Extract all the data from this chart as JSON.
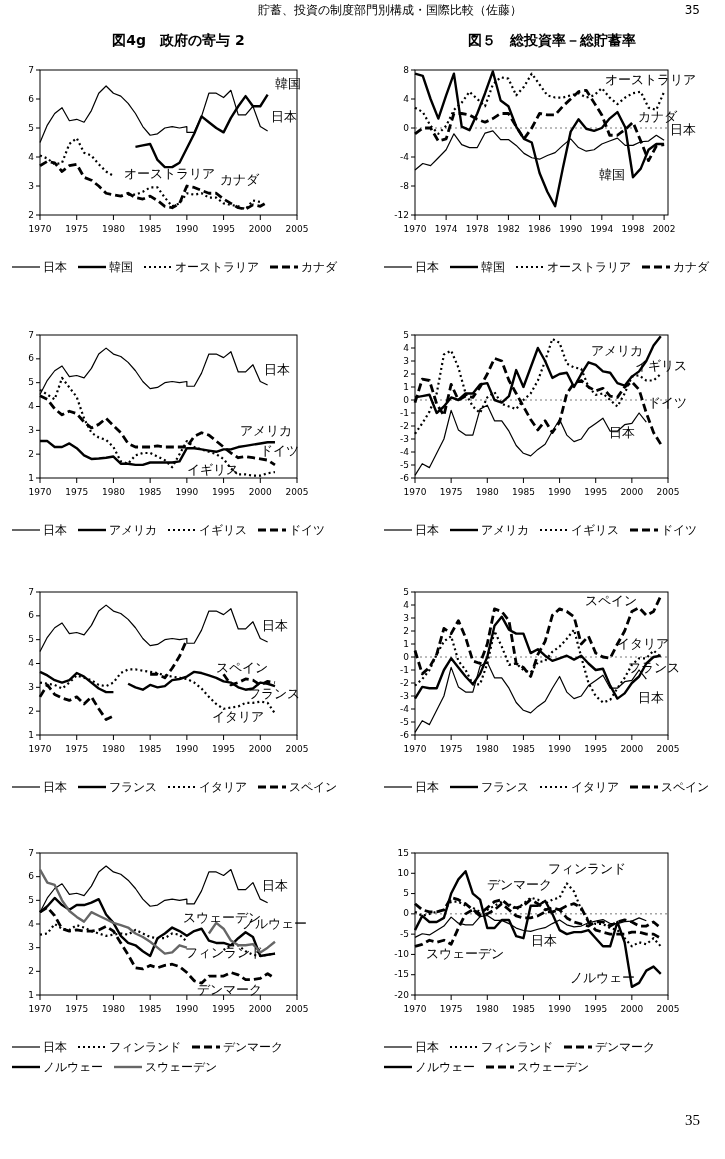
{
  "chart_data": [
    {
      "type": "line",
      "title": "図4g　政府の寄与 2",
      "annotations": [
        "貯蓄、投資の制度部門別構成・国際比較（佐藤）",
        "韓国",
        "日本",
        "オーストラリア",
        "カナダ"
      ],
      "x": [
        1970,
        1971,
        1972,
        1973,
        1974,
        1975,
        1976,
        1977,
        1978,
        1979,
        1980,
        1981,
        1982,
        1983,
        1984,
        1985,
        1986,
        1987,
        1988,
        1989,
        1990,
        1991,
        1992,
        1993,
        1994,
        1995,
        1996,
        1997,
        1998,
        1999,
        2000,
        2001
      ],
      "xlim": [
        1970,
        2005
      ],
      "xticks": [
        1970,
        1975,
        1980,
        1985,
        1990,
        1995,
        2000,
        2005
      ],
      "ylim": [
        2,
        7
      ],
      "yticks": [
        2,
        3,
        4,
        5,
        6,
        7
      ],
      "legend": "bottom",
      "series": [
        {
          "name": "日本",
          "color": "#000000",
          "line_style": "solid",
          "x": [
            1970,
            1971,
            1972,
            1973,
            1974,
            1975,
            1976,
            1977,
            1978,
            1979,
            1980,
            1981,
            1982,
            1983,
            1984,
            1985,
            1986,
            1987,
            1988,
            1989,
            1990,
            1990,
            1991,
            1992,
            1993,
            1994,
            1995,
            1996,
            1997,
            1998,
            1999,
            2000,
            2001
          ],
          "values": [
            4.5,
            5.1,
            5.5,
            5.7,
            5.25,
            5.3,
            5.2,
            5.6,
            6.2,
            6.45,
            6.2,
            6.1,
            5.85,
            5.5,
            5.05,
            4.75,
            4.8,
            5.0,
            5.05,
            5.0,
            5.05,
            4.85,
            4.85,
            5.4,
            6.2,
            6.2,
            6.05,
            6.3,
            5.45,
            5.45,
            5.75,
            5.05,
            4.9
          ]
        },
        {
          "name": "韓国",
          "color": "#000000",
          "line_style": "solid",
          "values": [
            null,
            null,
            null,
            null,
            null,
            null,
            null,
            null,
            null,
            null,
            null,
            null,
            null,
            4.35,
            4.4,
            4.45,
            3.9,
            3.65,
            3.65,
            3.8,
            4.3,
            4.8,
            5.4,
            5.2,
            5.0,
            4.85,
            5.35,
            5.75,
            6.1,
            5.75,
            5.75,
            6.15
          ]
        },
        {
          "name": "オーストラリア",
          "color": "#000000",
          "line_style": "dotted",
          "values": [
            4.05,
            3.95,
            3.75,
            3.8,
            4.45,
            4.65,
            4.15,
            4.05,
            3.75,
            3.5,
            3.35,
            null,
            2.7,
            2.7,
            2.8,
            2.95,
            2.95,
            2.6,
            2.3,
            2.4,
            2.75,
            2.7,
            2.75,
            2.6,
            2.6,
            2.4,
            2.35,
            2.3,
            2.2,
            2.5,
            2.45,
            null
          ]
        },
        {
          "name": "カナダ",
          "color": "#000000",
          "line_style": "dashed",
          "values": [
            3.7,
            3.85,
            3.8,
            3.5,
            3.7,
            3.75,
            3.3,
            3.2,
            3.0,
            2.75,
            2.7,
            2.65,
            2.75,
            2.6,
            2.55,
            2.65,
            2.5,
            2.3,
            2.25,
            2.4,
            3.0,
            2.95,
            2.85,
            2.75,
            2.75,
            2.55,
            2.4,
            2.25,
            2.2,
            2.35,
            2.3,
            2.45
          ]
        }
      ]
    },
    {
      "type": "line",
      "title": "図５　総投資率－総貯蓄率",
      "annotations": [
        "35",
        "オーストラリア",
        "カナダ",
        "日本",
        "韓国"
      ],
      "x": [
        1970,
        1971,
        1972,
        1973,
        1974,
        1975,
        1976,
        1977,
        1978,
        1979,
        1980,
        1981,
        1982,
        1983,
        1984,
        1985,
        1986,
        1987,
        1988,
        1989,
        1990,
        1991,
        1992,
        1993,
        1994,
        1995,
        1996,
        1997,
        1998,
        1999,
        2000,
        2001,
        2002
      ],
      "xlim": [
        1970,
        2002.5
      ],
      "xticks": [
        1970,
        1974,
        1978,
        1982,
        1986,
        1990,
        1994,
        1998,
        2002
      ],
      "ylim": [
        -12,
        8
      ],
      "yticks": [
        -12,
        -8,
        -4,
        0,
        4,
        8
      ],
      "legend": "bottom",
      "ref_lines": [
        {
          "axis": "y",
          "value": 0,
          "line_style": "dotted"
        }
      ],
      "series": [
        {
          "name": "日本",
          "color": "#000000",
          "line_style": "solid",
          "values": [
            -5.8,
            -4.9,
            -5.2,
            -4.1,
            -3.0,
            -0.8,
            -2.3,
            -2.7,
            -2.7,
            -0.7,
            -0.4,
            -1.6,
            -1.6,
            -2.4,
            -3.5,
            -4.1,
            -4.3,
            -3.8,
            -3.4,
            -2.4,
            -1.5,
            -2.7,
            -3.2,
            -3.0,
            -2.2,
            -1.8,
            -1.4,
            -2.4,
            -2.4,
            -1.9,
            -1.8,
            -1.0,
            -1.7
          ]
        },
        {
          "name": "韓国",
          "color": "#000000",
          "line_style": "solid",
          "values": [
            7.5,
            7.2,
            4.0,
            1.3,
            4.5,
            7.5,
            0.2,
            -0.3,
            2.0,
            4.8,
            7.8,
            3.8,
            3.0,
            0.2,
            -1.5,
            -2.0,
            -6.2,
            -8.8,
            -10.8,
            -5.5,
            -0.5,
            1.2,
            -0.1,
            -0.4,
            0.0,
            1.3,
            2.2,
            0.1,
            -6.8,
            -5.6,
            -3.0,
            -2.2,
            -2.2
          ]
        },
        {
          "name": "オーストラリア",
          "color": "#000000",
          "line_style": "dotted",
          "values": [
            2.8,
            2.2,
            0.3,
            -0.8,
            0.3,
            2.5,
            3.5,
            5.0,
            4.0,
            3.0,
            6.0,
            7.0,
            6.8,
            4.5,
            5.7,
            7.5,
            6.0,
            4.5,
            4.2,
            4.2,
            4.5,
            4.8,
            4.2,
            4.5,
            5.5,
            4.2,
            3.3,
            4.2,
            4.8,
            5.0,
            2.8,
            2.5,
            5.0
          ]
        },
        {
          "name": "カナダ",
          "color": "#000000",
          "line_style": "dashed",
          "values": [
            -0.8,
            0.0,
            0.0,
            -1.8,
            -1.5,
            2.0,
            2.0,
            1.8,
            1.2,
            0.8,
            1.3,
            2.0,
            2.0,
            0.2,
            -1.5,
            0.0,
            2.0,
            1.8,
            1.8,
            3.0,
            4.0,
            5.0,
            5.2,
            3.5,
            1.8,
            -1.0,
            -1.0,
            -0.2,
            0.8,
            -1.8,
            -4.5,
            -2.5,
            -2.3
          ]
        }
      ]
    },
    {
      "type": "line",
      "annotations": [
        "日本",
        "アメリカ",
        "ドイツ",
        "イギリス"
      ],
      "x": [
        1970,
        1971,
        1972,
        1973,
        1974,
        1975,
        1976,
        1977,
        1978,
        1979,
        1980,
        1981,
        1982,
        1983,
        1984,
        1985,
        1986,
        1987,
        1988,
        1989,
        1990,
        1991,
        1992,
        1993,
        1994,
        1995,
        1996,
        1997,
        1998,
        1999,
        2000,
        2001,
        2002
      ],
      "xlim": [
        1970,
        2005
      ],
      "xticks": [
        1970,
        1975,
        1980,
        1985,
        1990,
        1995,
        2000,
        2005
      ],
      "ylim": [
        1,
        7
      ],
      "yticks": [
        1,
        2,
        3,
        4,
        5,
        6,
        7
      ],
      "legend": "bottom",
      "series": [
        {
          "name": "日本",
          "color": "#000000",
          "line_style": "solid",
          "x": [
            1970,
            1971,
            1972,
            1973,
            1974,
            1975,
            1976,
            1977,
            1978,
            1979,
            1980,
            1981,
            1982,
            1983,
            1984,
            1985,
            1986,
            1987,
            1988,
            1989,
            1990,
            1990,
            1991,
            1992,
            1993,
            1994,
            1995,
            1996,
            1997,
            1998,
            1999,
            2000,
            2001
          ],
          "values": [
            4.5,
            5.1,
            5.5,
            5.7,
            5.25,
            5.3,
            5.2,
            5.6,
            6.2,
            6.45,
            6.2,
            6.1,
            5.85,
            5.5,
            5.05,
            4.75,
            4.8,
            5.0,
            5.05,
            5.0,
            5.05,
            4.85,
            4.85,
            5.4,
            6.2,
            6.2,
            6.05,
            6.3,
            5.45,
            5.45,
            5.75,
            5.05,
            4.9
          ]
        },
        {
          "name": "アメリカ",
          "color": "#000000",
          "line_style": "solid",
          "values": [
            2.55,
            2.55,
            2.3,
            2.3,
            2.45,
            2.25,
            1.95,
            1.8,
            1.82,
            1.85,
            1.9,
            1.6,
            1.6,
            1.55,
            1.55,
            1.65,
            1.65,
            1.65,
            1.65,
            1.7,
            2.25,
            2.25,
            2.2,
            2.15,
            2.1,
            2.2,
            2.2,
            2.3,
            2.35,
            2.4,
            2.45,
            2.5,
            2.5
          ]
        },
        {
          "name": "イギリス",
          "color": "#000000",
          "line_style": "dotted",
          "values": [
            4.7,
            4.5,
            4.3,
            5.2,
            4.8,
            4.4,
            3.5,
            2.9,
            2.7,
            2.6,
            2.3,
            1.7,
            1.6,
            1.95,
            2.05,
            2.05,
            1.9,
            1.75,
            1.45,
            2.0,
            2.55,
            2.3,
            2.2,
            2.1,
            2.0,
            1.8,
            1.4,
            1.15,
            1.15,
            1.1,
            1.1,
            1.2,
            1.25
          ]
        },
        {
          "name": "ドイツ",
          "color": "#000000",
          "line_style": "dashed",
          "values": [
            4.45,
            4.3,
            3.9,
            3.65,
            3.8,
            3.7,
            3.35,
            3.1,
            3.25,
            3.5,
            3.2,
            2.9,
            2.45,
            2.3,
            2.3,
            2.3,
            2.35,
            2.3,
            2.3,
            2.3,
            2.3,
            2.75,
            2.9,
            2.8,
            2.55,
            2.3,
            2.05,
            1.85,
            1.9,
            1.85,
            1.8,
            1.75,
            1.55
          ]
        }
      ]
    },
    {
      "type": "line",
      "annotations": [
        "アメリカ",
        "イギリス",
        "ドイツ",
        "日本"
      ],
      "x": [
        1970,
        1971,
        1972,
        1973,
        1974,
        1975,
        1976,
        1977,
        1978,
        1979,
        1980,
        1981,
        1982,
        1983,
        1984,
        1985,
        1986,
        1987,
        1988,
        1989,
        1990,
        1991,
        1992,
        1993,
        1994,
        1995,
        1996,
        1997,
        1998,
        1999,
        2000,
        2001,
        2002,
        2003,
        2004
      ],
      "xlim": [
        1970,
        2005
      ],
      "xticks": [
        1970,
        1975,
        1980,
        1985,
        1990,
        1995,
        2000,
        2005
      ],
      "ylim": [
        -6,
        5
      ],
      "yticks": [
        -6,
        -5,
        -4,
        -3,
        -2,
        -1,
        0,
        1,
        2,
        3,
        4,
        5
      ],
      "legend": "bottom",
      "ref_lines": [
        {
          "axis": "y",
          "value": 0,
          "line_style": "dotted"
        }
      ],
      "series": [
        {
          "name": "日本",
          "color": "#000000",
          "line_style": "solid",
          "x": [
            1970,
            1971,
            1972,
            1973,
            1974,
            1975,
            1976,
            1977,
            1978,
            1979,
            1980,
            1981,
            1982,
            1983,
            1984,
            1985,
            1986,
            1987,
            1988,
            1989,
            1990,
            1991,
            1992,
            1993,
            1994,
            1995,
            1996,
            1997,
            1998,
            1999,
            2000,
            2001,
            2002
          ],
          "values": [
            -5.8,
            -4.9,
            -5.2,
            -4.1,
            -3.0,
            -0.8,
            -2.3,
            -2.7,
            -2.7,
            -0.7,
            -0.4,
            -1.6,
            -1.6,
            -2.4,
            -3.5,
            -4.1,
            -4.3,
            -3.8,
            -3.4,
            -2.4,
            -1.5,
            -2.7,
            -3.2,
            -3.0,
            -2.2,
            -1.8,
            -1.4,
            -2.4,
            -2.4,
            -1.9,
            -1.8,
            -1.0,
            -1.7
          ]
        },
        {
          "name": "アメリカ",
          "color": "#000000",
          "line_style": "solid",
          "values": [
            0.2,
            0.3,
            0.4,
            -1.0,
            -0.5,
            0.2,
            0.0,
            0.5,
            0.5,
            1.2,
            1.3,
            0.0,
            -0.2,
            0.3,
            2.3,
            1.0,
            2.5,
            4.0,
            3.0,
            1.7,
            2.0,
            2.1,
            1.0,
            2.0,
            2.9,
            2.7,
            2.2,
            2.1,
            1.3,
            1.1,
            1.8,
            2.2,
            3.0,
            4.2,
            4.9
          ]
        },
        {
          "name": "イギリス",
          "color": "#000000",
          "line_style": "dotted",
          "values": [
            -2.6,
            -1.8,
            -0.9,
            0.5,
            3.5,
            3.8,
            2.5,
            0.5,
            -0.5,
            -1.0,
            0.2,
            0.6,
            -0.3,
            -0.5,
            -0.7,
            0.0,
            0.5,
            1.5,
            3.0,
            4.7,
            4.4,
            2.8,
            2.5,
            2.4,
            1.0,
            0.4,
            0.5,
            0.0,
            -0.5,
            0.5,
            1.8,
            1.9,
            1.5,
            1.5,
            2.0
          ]
        },
        {
          "name": "ドイツ",
          "color": "#000000",
          "line_style": "dashed",
          "values": [
            -0.2,
            1.6,
            1.5,
            -0.3,
            -1.2,
            1.2,
            0.0,
            0.3,
            0.2,
            1.0,
            2.0,
            3.2,
            3.0,
            1.5,
            0.5,
            -0.5,
            -1.5,
            -2.3,
            -1.6,
            -2.5,
            -1.7,
            0.5,
            1.3,
            1.5,
            1.0,
            0.7,
            0.9,
            0.3,
            0.2,
            1.0,
            1.4,
            0.8,
            -1.0,
            -2.5,
            -3.4
          ]
        }
      ]
    },
    {
      "type": "line",
      "annotations": [
        "日本",
        "スペイン",
        "フランス",
        "イタリア"
      ],
      "x": [
        1970,
        1971,
        1972,
        1973,
        1974,
        1975,
        1976,
        1977,
        1978,
        1979,
        1980,
        1981,
        1982,
        1983,
        1984,
        1985,
        1986,
        1987,
        1988,
        1989,
        1990,
        1991,
        1992,
        1993,
        1994,
        1995,
        1996,
        1997,
        1998,
        1999,
        2000,
        2001,
        2002
      ],
      "xlim": [
        1970,
        2005
      ],
      "xticks": [
        1970,
        1975,
        1980,
        1985,
        1990,
        1995,
        2000,
        2005
      ],
      "ylim": [
        1,
        7
      ],
      "yticks": [
        1,
        2,
        3,
        4,
        5,
        6,
        7
      ],
      "legend": "bottom",
      "series": [
        {
          "name": "日本",
          "color": "#000000",
          "line_style": "solid",
          "x": [
            1970,
            1971,
            1972,
            1973,
            1974,
            1975,
            1976,
            1977,
            1978,
            1979,
            1980,
            1981,
            1982,
            1983,
            1984,
            1985,
            1986,
            1987,
            1988,
            1989,
            1990,
            1990,
            1991,
            1992,
            1993,
            1994,
            1995,
            1996,
            1997,
            1998,
            1999,
            2000,
            2001
          ],
          "values": [
            4.5,
            5.1,
            5.5,
            5.7,
            5.25,
            5.3,
            5.2,
            5.6,
            6.2,
            6.45,
            6.2,
            6.1,
            5.85,
            5.5,
            5.05,
            4.75,
            4.8,
            5.0,
            5.05,
            5.0,
            5.05,
            4.85,
            4.85,
            5.4,
            6.2,
            6.2,
            6.05,
            6.3,
            5.45,
            5.45,
            5.75,
            5.05,
            4.9
          ]
        },
        {
          "name": "フランス",
          "color": "#000000",
          "line_style": "solid",
          "values": [
            3.65,
            3.5,
            3.3,
            3.2,
            3.3,
            3.6,
            3.45,
            3.2,
            2.95,
            2.8,
            2.8,
            null,
            3.15,
            3.0,
            2.9,
            3.1,
            3.0,
            3.05,
            3.3,
            3.35,
            3.45,
            3.65,
            3.6,
            3.5,
            3.4,
            3.25,
            3.2,
            3.0,
            2.9,
            2.95,
            3.2,
            3.15,
            3.05
          ]
        },
        {
          "name": "イタリア",
          "color": "#000000",
          "line_style": "dotted",
          "values": [
            3.2,
            3.15,
            3.1,
            2.95,
            3.2,
            3.5,
            3.4,
            3.3,
            3.1,
            3.05,
            3.2,
            3.6,
            3.75,
            3.75,
            3.7,
            3.65,
            3.6,
            3.5,
            3.45,
            3.4,
            3.35,
            3.2,
            2.95,
            2.6,
            2.3,
            2.1,
            2.15,
            2.2,
            2.35,
            2.35,
            2.4,
            2.35,
            1.9
          ]
        },
        {
          "name": "スペイン",
          "color": "#000000",
          "line_style": "dashed",
          "values": [
            2.6,
            3.1,
            2.7,
            2.55,
            2.45,
            2.6,
            2.3,
            2.6,
            2.1,
            1.65,
            1.8,
            null,
            null,
            null,
            null,
            3.55,
            3.55,
            3.4,
            3.8,
            4.3,
            5.0,
            null,
            null,
            null,
            null,
            3.55,
            3.1,
            3.2,
            3.35,
            3.3,
            3.1,
            3.25,
            3.2
          ]
        }
      ]
    },
    {
      "type": "line",
      "annotations": [
        "スペイン",
        "イタリア",
        "フランス",
        "日本"
      ],
      "x": [
        1970,
        1971,
        1972,
        1973,
        1974,
        1975,
        1976,
        1977,
        1978,
        1979,
        1980,
        1981,
        1982,
        1983,
        1984,
        1985,
        1986,
        1987,
        1988,
        1989,
        1990,
        1991,
        1992,
        1993,
        1994,
        1995,
        1996,
        1997,
        1998,
        1999,
        2000,
        2001,
        2002,
        2003,
        2004
      ],
      "xlim": [
        1970,
        2005
      ],
      "xticks": [
        1970,
        1975,
        1980,
        1985,
        1990,
        1995,
        2000,
        2005
      ],
      "ylim": [
        -6,
        5
      ],
      "yticks": [
        -6,
        -5,
        -4,
        -3,
        -2,
        -1,
        0,
        1,
        2,
        3,
        4,
        5
      ],
      "legend": "bottom",
      "ref_lines": [
        {
          "axis": "y",
          "value": 0,
          "line_style": "dotted"
        }
      ],
      "series": [
        {
          "name": "日本",
          "color": "#000000",
          "line_style": "solid",
          "x": [
            1970,
            1971,
            1972,
            1973,
            1974,
            1975,
            1976,
            1977,
            1978,
            1979,
            1980,
            1981,
            1982,
            1983,
            1984,
            1985,
            1986,
            1987,
            1988,
            1989,
            1990,
            1991,
            1992,
            1993,
            1994,
            1995,
            1996,
            1997,
            1998,
            1999,
            2000,
            2001,
            2002
          ],
          "values": [
            -5.8,
            -4.9,
            -5.2,
            -4.1,
            -3.0,
            -0.8,
            -2.3,
            -2.7,
            -2.7,
            -0.7,
            -0.4,
            -1.6,
            -1.6,
            -2.4,
            -3.5,
            -4.1,
            -4.3,
            -3.8,
            -3.4,
            -2.4,
            -1.5,
            -2.7,
            -3.2,
            -3.0,
            -2.2,
            -1.8,
            -1.4,
            -2.4,
            -2.4,
            -1.9,
            -1.8,
            -1.0,
            -1.7
          ]
        },
        {
          "name": "フランス",
          "color": "#000000",
          "line_style": "solid",
          "values": [
            -3.2,
            -2.3,
            -2.4,
            -2.4,
            -1.0,
            -0.1,
            -0.8,
            -1.5,
            -2.1,
            -1.3,
            0.0,
            2.4,
            3.1,
            2.1,
            1.8,
            1.8,
            0.3,
            0.6,
            0.1,
            -0.3,
            -0.1,
            0.1,
            -0.2,
            0.1,
            -0.5,
            -1.0,
            -0.9,
            -2.2,
            -3.2,
            -2.8,
            -2.0,
            -1.5,
            -0.5,
            0.0,
            0.1
          ]
        },
        {
          "name": "イタリア",
          "color": "#000000",
          "line_style": "dotted",
          "values": [
            -2.2,
            -1.7,
            -1.0,
            0.2,
            1.2,
            1.6,
            -0.3,
            -1.0,
            -2.1,
            -2.1,
            -0.5,
            2.0,
            0.8,
            -0.6,
            -0.5,
            -1.0,
            -1.2,
            -0.4,
            -0.3,
            0.4,
            0.8,
            1.4,
            2.1,
            0.0,
            -2.0,
            -3.0,
            -3.5,
            -3.3,
            -2.4,
            -1.6,
            -0.6,
            -0.1,
            -0.1,
            0.5,
            0.0
          ]
        },
        {
          "name": "スペイン",
          "color": "#000000",
          "line_style": "dashed",
          "values": [
            0.5,
            -1.3,
            -0.8,
            0.2,
            2.2,
            1.8,
            2.8,
            1.5,
            -0.3,
            -0.5,
            1.0,
            3.7,
            3.5,
            2.8,
            -0.5,
            -0.8,
            -1.5,
            0.2,
            1.2,
            3.2,
            3.7,
            3.5,
            3.1,
            1.0,
            1.6,
            0.3,
            0.0,
            -0.1,
            1.0,
            2.0,
            3.5,
            3.8,
            3.2,
            3.5,
            4.7
          ]
        }
      ]
    },
    {
      "type": "line",
      "annotations": [
        "日本",
        "スウェーデン",
        "ノルウェー",
        "フィンランド",
        "デンマーク"
      ],
      "x": [
        1970,
        1971,
        1972,
        1973,
        1974,
        1975,
        1976,
        1977,
        1978,
        1979,
        1980,
        1981,
        1982,
        1983,
        1984,
        1985,
        1986,
        1987,
        1988,
        1989,
        1990,
        1991,
        1992,
        1993,
        1994,
        1995,
        1996,
        1997,
        1998,
        1999,
        2000,
        2001,
        2002
      ],
      "xlim": [
        1970,
        2005
      ],
      "xticks": [
        1970,
        1975,
        1980,
        1985,
        1990,
        1995,
        2000,
        2005
      ],
      "ylim": [
        1,
        7
      ],
      "yticks": [
        1,
        2,
        3,
        4,
        5,
        6,
        7
      ],
      "legend": "bottom",
      "series": [
        {
          "name": "日本",
          "color": "#000000",
          "line_style": "solid",
          "x": [
            1970,
            1971,
            1972,
            1973,
            1974,
            1975,
            1976,
            1977,
            1978,
            1979,
            1980,
            1981,
            1982,
            1983,
            1984,
            1985,
            1986,
            1987,
            1988,
            1989,
            1990,
            1990,
            1991,
            1992,
            1993,
            1994,
            1995,
            1996,
            1997,
            1998,
            1999,
            2000,
            2001
          ],
          "values": [
            4.5,
            5.1,
            5.5,
            5.7,
            5.25,
            5.3,
            5.2,
            5.6,
            6.2,
            6.45,
            6.2,
            6.1,
            5.85,
            5.5,
            5.05,
            4.75,
            4.8,
            5.0,
            5.05,
            5.0,
            5.05,
            4.85,
            4.85,
            5.4,
            6.2,
            6.2,
            6.05,
            6.3,
            5.45,
            5.45,
            5.75,
            5.05,
            4.9
          ]
        },
        {
          "name": "フィンランド",
          "color": "#000000",
          "line_style": "dotted",
          "values": [
            3.55,
            3.6,
            4.0,
            3.8,
            3.75,
            3.95,
            3.85,
            3.7,
            3.6,
            3.5,
            3.55,
            3.6,
            3.55,
            3.75,
            3.6,
            3.45,
            3.4,
            3.4,
            3.6,
            3.55,
            3.25,
            null,
            null,
            null,
            null,
            2.9,
            3.1,
            3.1,
            2.85,
            2.7,
            2.65,
            2.7,
            2.75
          ]
        },
        {
          "name": "デンマーク",
          "color": "#000000",
          "line_style": "dashed",
          "values": [
            4.5,
            4.7,
            4.35,
            3.8,
            3.7,
            3.75,
            3.7,
            3.7,
            3.75,
            3.9,
            3.7,
            3.2,
            2.7,
            2.15,
            2.1,
            2.25,
            2.15,
            2.25,
            2.3,
            2.2,
            1.95,
            1.6,
            1.5,
            1.8,
            1.8,
            1.8,
            1.95,
            1.85,
            1.65,
            1.65,
            1.7,
            1.9,
            1.7
          ]
        },
        {
          "name": "ノルウェー",
          "color": "#000000",
          "line_style": "solid",
          "values": [
            4.5,
            4.75,
            5.1,
            4.8,
            4.6,
            4.8,
            4.8,
            4.9,
            5.05,
            4.4,
            4.05,
            3.5,
            3.2,
            3.1,
            2.85,
            2.65,
            3.4,
            3.6,
            3.85,
            3.7,
            3.5,
            3.7,
            3.8,
            3.3,
            3.2,
            3.2,
            3.1,
            3.4,
            3.65,
            3.45,
            2.65,
            2.7,
            2.75
          ]
        },
        {
          "name": "スウェーデン",
          "color": "#666666",
          "line_style": "solid",
          "values": [
            6.3,
            5.75,
            5.65,
            5.0,
            4.55,
            4.3,
            4.1,
            4.5,
            4.35,
            4.2,
            4.05,
            3.95,
            3.85,
            3.6,
            3.45,
            3.25,
            3.0,
            2.75,
            2.8,
            3.1,
            3.0,
            null,
            null,
            3.6,
            4.05,
            3.8,
            3.3,
            3.1,
            3.1,
            3.15,
            2.8,
            3.0,
            3.25
          ]
        }
      ]
    },
    {
      "type": "line",
      "annotations": [
        "35",
        "フィンランド",
        "デンマーク",
        "日本",
        "スウェーデン",
        "ノルウェー"
      ],
      "x": [
        1970,
        1971,
        1972,
        1973,
        1974,
        1975,
        1976,
        1977,
        1978,
        1979,
        1980,
        1981,
        1982,
        1983,
        1984,
        1985,
        1986,
        1987,
        1988,
        1989,
        1990,
        1991,
        1992,
        1993,
        1994,
        1995,
        1996,
        1997,
        1998,
        1999,
        2000,
        2001,
        2002,
        2003,
        2004
      ],
      "xlim": [
        1970,
        2005
      ],
      "xticks": [
        1970,
        1975,
        1980,
        1985,
        1990,
        1995,
        2000,
        2005
      ],
      "ylim": [
        -20,
        15
      ],
      "yticks": [
        -20,
        -15,
        -10,
        -5,
        0,
        5,
        10,
        15
      ],
      "legend": "bottom",
      "ref_lines": [
        {
          "axis": "y",
          "value": 0,
          "line_style": "dotted"
        }
      ],
      "series": [
        {
          "name": "日本",
          "color": "#000000",
          "line_style": "solid",
          "x": [
            1970,
            1971,
            1972,
            1973,
            1974,
            1975,
            1976,
            1977,
            1978,
            1979,
            1980,
            1981,
            1982,
            1983,
            1984,
            1985,
            1986,
            1987,
            1988,
            1989,
            1990,
            1991,
            1992,
            1993,
            1994,
            1995,
            1996,
            1997,
            1998,
            1999,
            2000,
            2001,
            2002
          ],
          "values": [
            -5.8,
            -4.9,
            -5.2,
            -4.1,
            -3.0,
            -0.8,
            -2.3,
            -2.7,
            -2.7,
            -0.7,
            -0.4,
            -1.6,
            -1.6,
            -2.4,
            -3.5,
            -4.1,
            -4.3,
            -3.8,
            -3.4,
            -2.4,
            -1.5,
            -2.7,
            -3.2,
            -3.0,
            -2.2,
            -1.8,
            -1.4,
            -2.4,
            -2.4,
            -1.9,
            -1.8,
            -1.0,
            -1.7
          ]
        },
        {
          "name": "フィンランド",
          "color": "#000000",
          "line_style": "dotted",
          "values": [
            0.5,
            -0.5,
            0.0,
            0.5,
            1.0,
            3.0,
            3.0,
            2.0,
            1.5,
            0.5,
            1.0,
            2.0,
            3.0,
            2.5,
            1.0,
            2.5,
            4.0,
            3.5,
            2.5,
            3.5,
            4.0,
            7.5,
            5.5,
            1.0,
            -1.5,
            -2.5,
            -2.5,
            -3.5,
            -4.0,
            -6.0,
            -8.0,
            -7.0,
            -7.5,
            -6.0,
            -8.0
          ]
        },
        {
          "name": "デンマーク",
          "color": "#000000",
          "line_style": "dashed",
          "values": [
            2.5,
            1.0,
            0.5,
            0.5,
            1.0,
            4.0,
            3.5,
            2.5,
            1.0,
            0.0,
            1.5,
            3.0,
            3.5,
            2.0,
            1.5,
            2.0,
            3.5,
            2.5,
            1.0,
            1.5,
            1.0,
            -1.0,
            -2.0,
            -2.5,
            -3.0,
            -2.0,
            -2.0,
            -3.0,
            -2.0,
            -1.5,
            -2.0,
            -3.0,
            -3.0,
            -2.0,
            -3.5
          ]
        },
        {
          "name": "ノルウェー",
          "color": "#000000",
          "line_style": "solid",
          "values": [
            -4.0,
            -0.5,
            -2.0,
            -2.0,
            -1.0,
            5.0,
            8.5,
            10.5,
            5.0,
            3.5,
            -3.5,
            -3.5,
            -1.5,
            -1.5,
            -5.5,
            -6.0,
            2.0,
            2.0,
            3.2,
            0.0,
            -4.0,
            -5.0,
            -4.5,
            -4.5,
            -4.0,
            -6.0,
            -8.0,
            -8.0,
            -2.0,
            -7.0,
            -18.0,
            -17.0,
            -14.0,
            -13.0,
            -14.8
          ]
        },
        {
          "name": "スウェーデン",
          "color": "#000000",
          "line_style": "dashed",
          "values": [
            -8.0,
            -7.5,
            -6.5,
            -7.0,
            -6.5,
            -7.5,
            -3.5,
            0.0,
            1.0,
            -0.5,
            0.0,
            1.0,
            2.5,
            1.0,
            -0.5,
            -1.0,
            -1.0,
            -0.5,
            0.5,
            0.5,
            1.0,
            2.0,
            2.5,
            1.5,
            -2.0,
            -4.0,
            -4.5,
            -5.0,
            -5.0,
            -5.0,
            -4.5,
            -4.5,
            -5.0,
            -5.0,
            -6.0
          ]
        }
      ]
    }
  ]
}
